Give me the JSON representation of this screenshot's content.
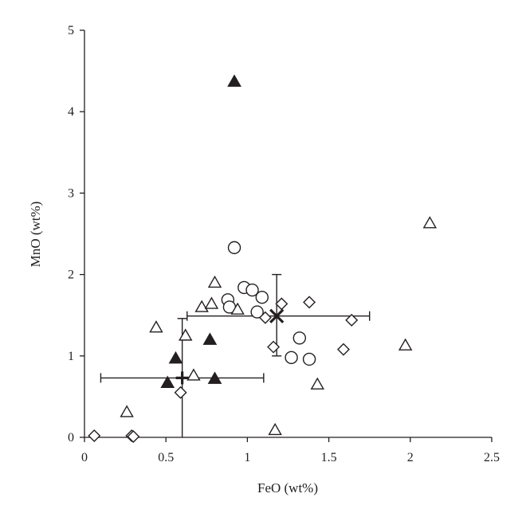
{
  "chart_data": {
    "type": "scatter",
    "title": "",
    "xlabel": "FeO (wt%)",
    "ylabel": "MnO (wt%)",
    "xlim": [
      0,
      2.5
    ],
    "ylim": [
      0,
      5
    ],
    "x_ticks": [
      0,
      0.5,
      1,
      1.5,
      2,
      2.5
    ],
    "x_tick_labels": [
      "0",
      "0.5",
      "1",
      "1.5",
      "2",
      "2.5"
    ],
    "y_ticks": [
      0,
      1,
      2,
      3,
      4,
      5
    ],
    "y_tick_labels": [
      "0",
      "1",
      "2",
      "3",
      "4",
      "5"
    ],
    "grid": false,
    "legend": "none",
    "series": [
      {
        "marker": "open-circle",
        "points": [
          [
            0.92,
            2.33
          ],
          [
            0.98,
            1.84
          ],
          [
            1.03,
            1.81
          ],
          [
            1.09,
            1.72
          ],
          [
            0.88,
            1.69
          ],
          [
            0.89,
            1.6
          ],
          [
            1.06,
            1.54
          ],
          [
            1.32,
            1.22
          ],
          [
            1.27,
            0.98
          ],
          [
            1.38,
            0.96
          ]
        ]
      },
      {
        "marker": "open-diamond",
        "points": [
          [
            0.06,
            0.02
          ],
          [
            0.29,
            0.02
          ],
          [
            0.3,
            0.01
          ],
          [
            0.59,
            0.55
          ],
          [
            1.11,
            1.47
          ],
          [
            1.21,
            1.64
          ],
          [
            1.38,
            1.66
          ],
          [
            1.64,
            1.44
          ],
          [
            1.16,
            1.11
          ],
          [
            1.59,
            1.08
          ]
        ]
      },
      {
        "marker": "open-triangle",
        "points": [
          [
            0.26,
            0.31
          ],
          [
            0.44,
            1.35
          ],
          [
            0.62,
            1.25
          ],
          [
            0.67,
            0.76
          ],
          [
            0.72,
            1.6
          ],
          [
            0.78,
            1.64
          ],
          [
            0.8,
            1.9
          ],
          [
            0.94,
            1.57
          ],
          [
            1.17,
            0.09
          ],
          [
            1.43,
            0.65
          ],
          [
            1.97,
            1.13
          ],
          [
            2.12,
            2.63
          ]
        ]
      },
      {
        "marker": "filled-triangle",
        "points": [
          [
            0.92,
            4.37
          ],
          [
            0.56,
            0.97
          ],
          [
            0.51,
            0.67
          ],
          [
            0.77,
            1.2
          ],
          [
            0.8,
            0.72
          ]
        ]
      }
    ],
    "summary_markers": [
      {
        "marker": "plus",
        "x": 0.6,
        "y": 0.73,
        "x_err": [
          0.1,
          1.1
        ],
        "y_err": [
          0,
          1.46
        ]
      },
      {
        "marker": "cross",
        "x": 1.18,
        "y": 1.49,
        "x_err": [
          0.63,
          1.75
        ],
        "y_err": [
          1.0,
          2.0
        ]
      }
    ],
    "colors": {
      "ink": "#231f20",
      "background": "#ffffff"
    }
  }
}
